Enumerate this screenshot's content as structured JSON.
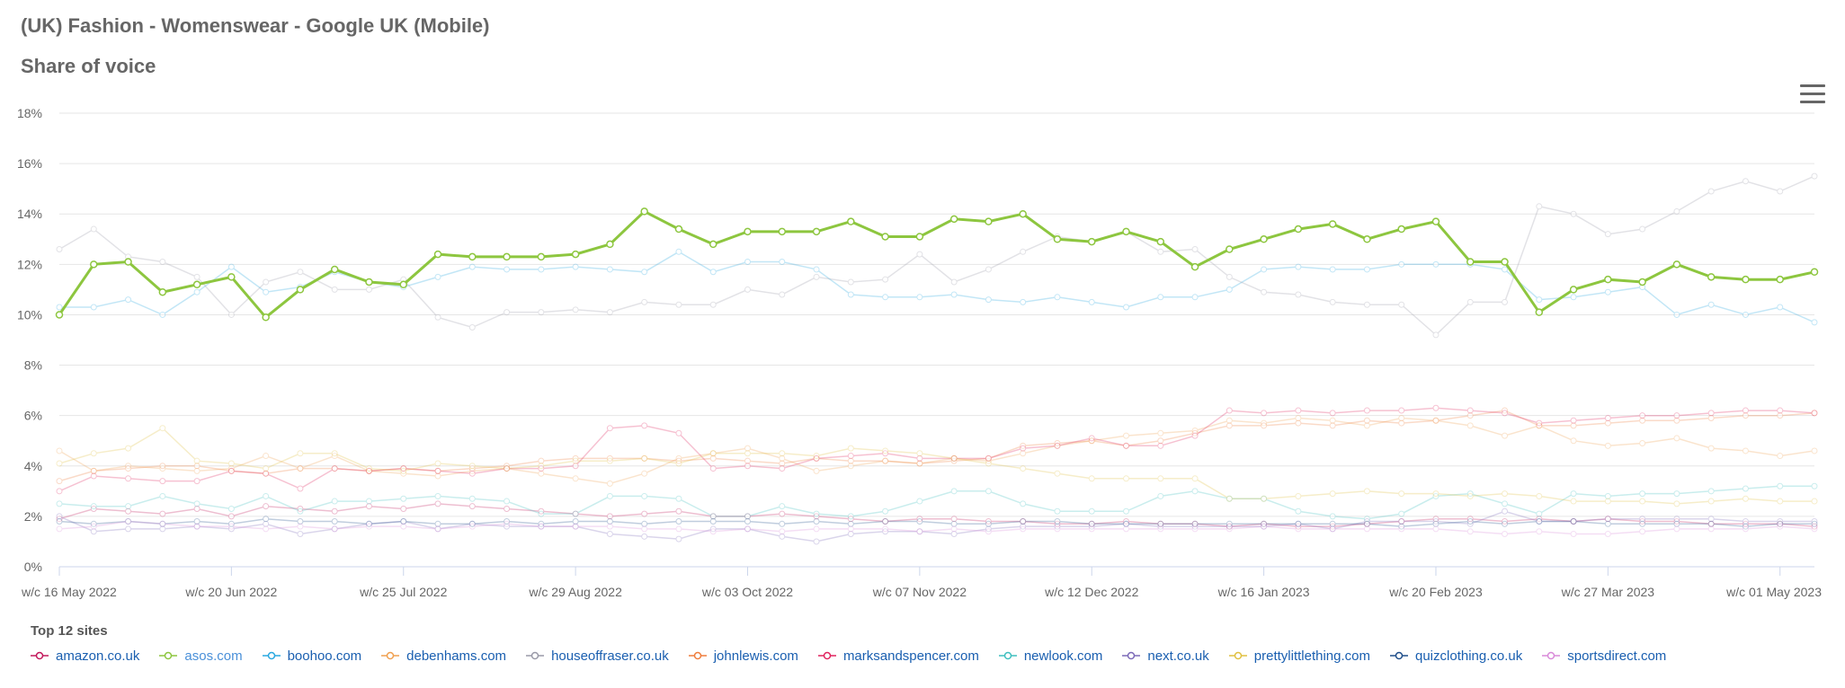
{
  "header": {
    "title": "(UK) Fashion - Womenswear - Google UK (Mobile)",
    "subtitle": "Share of voice",
    "menu_icon": "hamburger-icon"
  },
  "legend": {
    "title": "Top 12 sites"
  },
  "chart_data": {
    "type": "line",
    "y_ticks": [
      "0%",
      "2%",
      "4%",
      "6%",
      "8%",
      "10%",
      "12%",
      "14%",
      "16%",
      "18%"
    ],
    "ylim": [
      0,
      18
    ],
    "x_labels": [
      "w/c 16 May 2022",
      "w/c 20 Jun 2022",
      "w/c 25 Jul 2022",
      "w/c 29 Aug 2022",
      "w/c 03 Oct 2022",
      "w/c 07 Nov 2022",
      "w/c 12 Dec 2022",
      "w/c 16 Jan 2023",
      "w/c 20 Feb 2023",
      "w/c 27 Mar 2023",
      "w/c 01 May 2023"
    ],
    "x_label_index": [
      0,
      5,
      10,
      15,
      20,
      25,
      30,
      35,
      40,
      45,
      50
    ],
    "grid": true,
    "legend_position": "bottom-left",
    "highlight_series": "asos.com",
    "series": [
      {
        "name": "amazon.co.uk",
        "color": "#c2185b",
        "values": [
          1.9,
          2.3,
          2.2,
          2.1,
          2.3,
          2.0,
          2.4,
          2.3,
          2.2,
          2.4,
          2.3,
          2.5,
          2.4,
          2.3,
          2.2,
          2.1,
          2.0,
          2.1,
          2.2,
          2.0,
          2.0,
          2.1,
          2.0,
          1.9,
          1.8,
          1.9,
          1.9,
          1.8,
          1.8,
          1.7,
          1.7,
          1.8,
          1.7,
          1.7,
          1.6,
          1.7,
          1.6,
          1.6,
          1.7,
          1.8,
          1.9,
          1.9,
          1.8,
          1.9,
          1.8,
          1.9,
          1.8,
          1.8,
          1.7,
          1.7,
          1.7,
          1.6
        ]
      },
      {
        "name": "asos.com",
        "color": "#8dc63f",
        "values": [
          10.0,
          12.0,
          12.1,
          10.9,
          11.2,
          11.5,
          9.9,
          11.0,
          11.8,
          11.3,
          11.2,
          12.4,
          12.3,
          12.3,
          12.3,
          12.4,
          12.8,
          14.1,
          13.4,
          12.8,
          13.3,
          13.3,
          13.3,
          13.7,
          13.1,
          13.1,
          13.8,
          13.7,
          14.0,
          13.0,
          12.9,
          13.3,
          12.9,
          11.9,
          12.6,
          13.0,
          13.4,
          13.6,
          13.0,
          13.4,
          13.7,
          12.1,
          12.1,
          10.1,
          11.0,
          11.4,
          11.3,
          12.0,
          11.5,
          11.4,
          11.4,
          11.7
        ]
      },
      {
        "name": "boohoo.com",
        "color": "#29a8e0",
        "values": [
          10.3,
          10.3,
          10.6,
          10.0,
          10.9,
          11.9,
          10.9,
          11.1,
          11.7,
          11.3,
          11.1,
          11.5,
          11.9,
          11.8,
          11.8,
          11.9,
          11.8,
          11.7,
          12.5,
          11.7,
          12.1,
          12.1,
          11.8,
          10.8,
          10.7,
          10.7,
          10.8,
          10.6,
          10.5,
          10.7,
          10.5,
          10.3,
          10.7,
          10.7,
          11.0,
          11.8,
          11.9,
          11.8,
          11.8,
          12.0,
          12.0,
          12.0,
          11.8,
          10.6,
          10.7,
          10.9,
          11.1,
          10.0,
          10.4,
          10.0,
          10.3,
          9.7
        ]
      },
      {
        "name": "debenhams.com",
        "color": "#f0a050",
        "values": [
          4.6,
          3.8,
          4.0,
          3.9,
          3.8,
          3.9,
          4.4,
          3.9,
          4.4,
          3.8,
          3.7,
          3.6,
          3.8,
          3.9,
          3.7,
          3.5,
          3.3,
          3.7,
          4.3,
          4.5,
          4.7,
          4.3,
          3.8,
          4.0,
          4.2,
          4.1,
          4.3,
          4.2,
          4.5,
          4.8,
          5.0,
          5.2,
          5.3,
          5.4,
          5.8,
          5.7,
          5.9,
          5.8,
          5.6,
          5.9,
          5.8,
          5.6,
          5.2,
          5.6,
          5.0,
          4.8,
          4.9,
          5.1,
          4.7,
          4.6,
          4.4,
          4.6
        ]
      },
      {
        "name": "houseoffraser.co.uk",
        "color": "#9a9aa8",
        "values": [
          12.6,
          13.4,
          12.3,
          12.1,
          11.5,
          10.0,
          11.3,
          11.7,
          11.0,
          11.0,
          11.4,
          9.9,
          9.5,
          10.1,
          10.1,
          10.2,
          10.1,
          10.5,
          10.4,
          10.4,
          11.0,
          10.8,
          11.5,
          11.3,
          11.4,
          12.4,
          11.3,
          11.8,
          12.5,
          13.1,
          12.9,
          13.3,
          12.5,
          12.6,
          11.5,
          10.9,
          10.8,
          10.5,
          10.4,
          10.4,
          9.2,
          10.5,
          10.5,
          14.3,
          14.0,
          13.2,
          13.4,
          14.1,
          14.9,
          15.3,
          14.9,
          15.5
        ]
      },
      {
        "name": "johnlewis.com",
        "color": "#ef7d3c",
        "values": [
          3.4,
          3.8,
          3.9,
          4.0,
          4.0,
          3.8,
          3.7,
          3.9,
          3.9,
          3.8,
          3.9,
          3.8,
          3.9,
          4.0,
          4.2,
          4.3,
          4.3,
          4.3,
          4.2,
          4.3,
          4.2,
          4.1,
          4.3,
          4.2,
          4.2,
          4.1,
          4.2,
          4.3,
          4.8,
          4.9,
          5.0,
          4.8,
          5.0,
          5.3,
          5.6,
          5.6,
          5.7,
          5.6,
          5.8,
          5.7,
          5.8,
          6.0,
          6.2,
          5.6,
          5.6,
          5.7,
          5.8,
          5.8,
          5.9,
          6.0,
          6.0,
          6.1
        ]
      },
      {
        "name": "marksandspencer.com",
        "color": "#e0245e",
        "values": [
          3.0,
          3.6,
          3.5,
          3.4,
          3.4,
          3.8,
          3.7,
          3.1,
          3.9,
          3.8,
          3.9,
          3.8,
          3.7,
          3.9,
          3.9,
          4.0,
          5.5,
          5.6,
          5.3,
          3.9,
          4.0,
          3.9,
          4.3,
          4.4,
          4.5,
          4.3,
          4.3,
          4.3,
          4.7,
          4.8,
          5.1,
          4.8,
          4.8,
          5.2,
          6.2,
          6.1,
          6.2,
          6.1,
          6.2,
          6.2,
          6.3,
          6.2,
          6.1,
          5.7,
          5.8,
          5.9,
          6.0,
          6.0,
          6.1,
          6.2,
          6.2,
          6.1
        ]
      },
      {
        "name": "newlook.com",
        "color": "#3fbfbf",
        "values": [
          2.5,
          2.4,
          2.4,
          2.8,
          2.5,
          2.3,
          2.8,
          2.2,
          2.6,
          2.6,
          2.7,
          2.8,
          2.7,
          2.6,
          2.1,
          2.1,
          2.8,
          2.8,
          2.7,
          2.0,
          2.0,
          2.4,
          2.1,
          2.0,
          2.2,
          2.6,
          3.0,
          3.0,
          2.5,
          2.2,
          2.2,
          2.2,
          2.8,
          3.0,
          2.7,
          2.7,
          2.2,
          2.0,
          1.9,
          2.1,
          2.8,
          2.9,
          2.5,
          2.1,
          2.9,
          2.8,
          2.9,
          2.9,
          3.0,
          3.1,
          3.2,
          3.2
        ]
      },
      {
        "name": "next.co.uk",
        "color": "#7c6ab8",
        "values": [
          2.0,
          1.4,
          1.5,
          1.5,
          1.6,
          1.5,
          1.7,
          1.3,
          1.5,
          1.7,
          1.8,
          1.5,
          1.7,
          1.6,
          1.6,
          1.6,
          1.3,
          1.2,
          1.1,
          1.5,
          1.5,
          1.2,
          1.0,
          1.3,
          1.4,
          1.4,
          1.3,
          1.5,
          1.6,
          1.6,
          1.6,
          1.7,
          1.6,
          1.6,
          1.6,
          1.6,
          1.7,
          1.5,
          1.8,
          1.8,
          1.8,
          1.7,
          2.2,
          1.8,
          1.8,
          1.9,
          1.9,
          1.9,
          1.9,
          1.8,
          1.8,
          1.8
        ]
      },
      {
        "name": "prettylittlething.com",
        "color": "#e0c040",
        "values": [
          4.1,
          4.5,
          4.7,
          5.5,
          4.2,
          4.1,
          3.9,
          4.5,
          4.5,
          3.9,
          3.8,
          4.1,
          4.0,
          3.9,
          4.0,
          4.2,
          4.2,
          4.3,
          4.1,
          4.5,
          4.5,
          4.5,
          4.4,
          4.7,
          4.6,
          4.5,
          4.3,
          4.1,
          3.9,
          3.7,
          3.5,
          3.5,
          3.5,
          3.5,
          2.7,
          2.7,
          2.8,
          2.9,
          3.0,
          2.9,
          2.9,
          2.8,
          2.9,
          2.8,
          2.6,
          2.6,
          2.6,
          2.5,
          2.6,
          2.7,
          2.6,
          2.6
        ]
      },
      {
        "name": "quizclothing.co.uk",
        "color": "#1f4e8a",
        "values": [
          1.8,
          1.7,
          1.8,
          1.7,
          1.8,
          1.7,
          1.9,
          1.8,
          1.8,
          1.7,
          1.8,
          1.7,
          1.7,
          1.8,
          1.7,
          1.8,
          1.8,
          1.7,
          1.8,
          1.8,
          1.8,
          1.7,
          1.8,
          1.7,
          1.8,
          1.8,
          1.7,
          1.7,
          1.8,
          1.8,
          1.7,
          1.7,
          1.7,
          1.7,
          1.7,
          1.7,
          1.7,
          1.7,
          1.7,
          1.6,
          1.7,
          1.8,
          1.7,
          1.8,
          1.8,
          1.7,
          1.7,
          1.7,
          1.7,
          1.6,
          1.7,
          1.7
        ]
      },
      {
        "name": "sportsdirect.com",
        "color": "#d98ad9",
        "values": [
          1.5,
          1.6,
          1.8,
          1.7,
          1.6,
          1.6,
          1.5,
          1.6,
          1.5,
          1.6,
          1.6,
          1.5,
          1.6,
          1.7,
          1.6,
          1.6,
          1.6,
          1.5,
          1.5,
          1.4,
          1.5,
          1.4,
          1.5,
          1.5,
          1.5,
          1.4,
          1.5,
          1.4,
          1.5,
          1.5,
          1.5,
          1.5,
          1.5,
          1.5,
          1.5,
          1.6,
          1.5,
          1.5,
          1.5,
          1.5,
          1.5,
          1.4,
          1.3,
          1.4,
          1.3,
          1.3,
          1.4,
          1.5,
          1.5,
          1.5,
          1.6,
          1.5
        ]
      }
    ]
  }
}
